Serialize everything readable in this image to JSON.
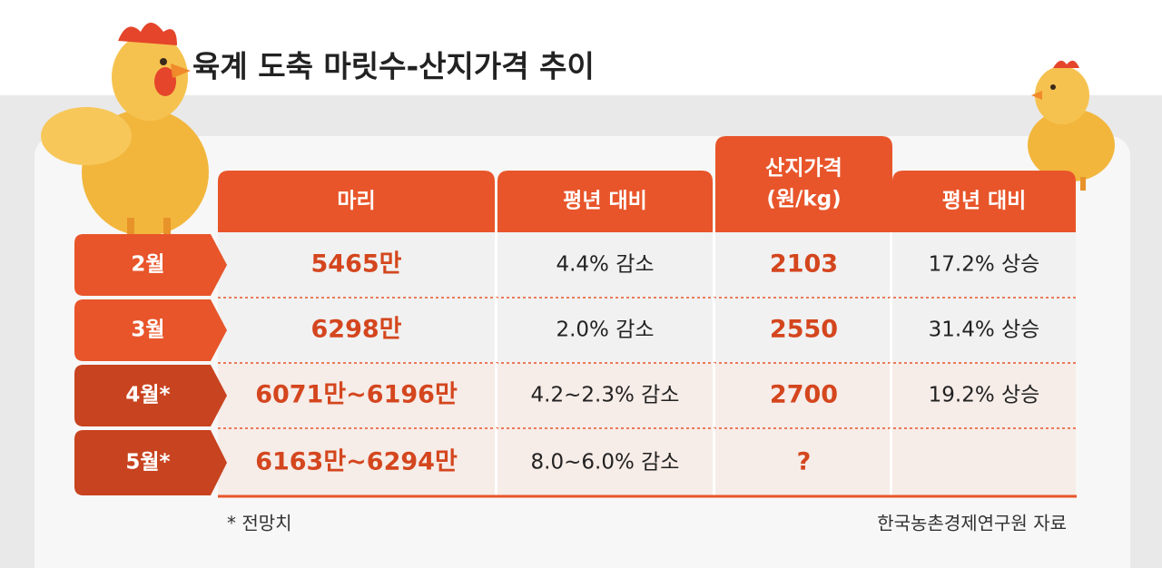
{
  "header": {
    "title": "육계 도축 마릿수-산지가격 추이"
  },
  "table": {
    "columns": [
      [
        "마리"
      ],
      [
        "평년 대비"
      ],
      [
        "산지가격",
        "(원/kg)"
      ],
      [
        "평년 대비"
      ]
    ],
    "rows": [
      {
        "label": "2월",
        "cells": [
          "5465만",
          "4.4% 감소",
          "2103",
          "17.2% 상승"
        ]
      },
      {
        "label": "3월",
        "cells": [
          "6298만",
          "2.0% 감소",
          "2550",
          "31.4% 상승"
        ]
      },
      {
        "label": "4월*",
        "cells": [
          "6071만~6196만",
          "4.2~2.3% 감소",
          "2700",
          "19.2% 상승"
        ]
      },
      {
        "label": "5월*",
        "cells": [
          "6163만~6294만",
          "8.0~6.0% 감소",
          "?"
        ]
      }
    ]
  },
  "footer": {
    "note": "* 전망치",
    "source": "한국농촌경제연구원 자료"
  }
}
